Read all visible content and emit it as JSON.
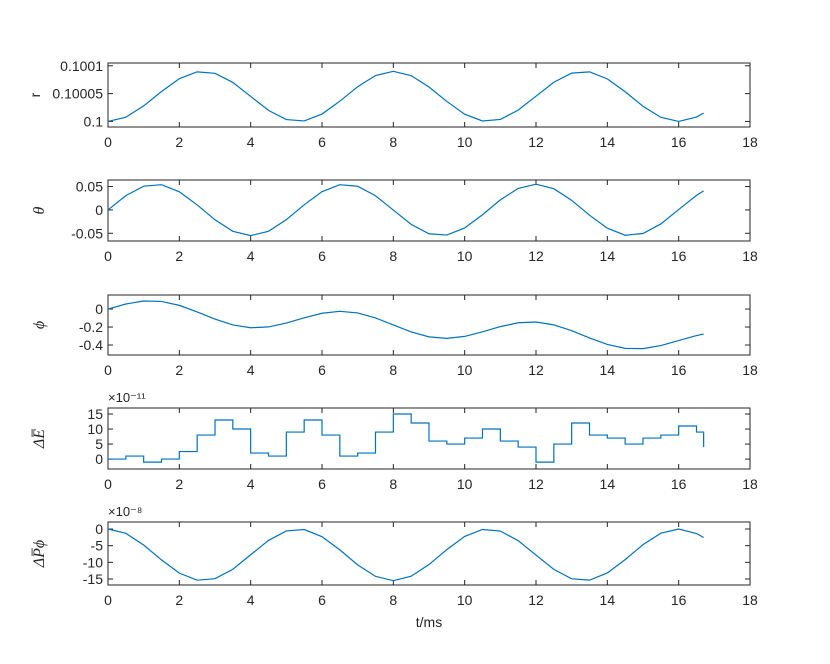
{
  "chart_data": [
    {
      "type": "line",
      "ylabel": "r",
      "color": "#0072BD",
      "x": [
        0,
        0.5,
        1,
        1.5,
        2,
        2.5,
        3,
        3.5,
        4,
        4.5,
        5,
        5.5,
        6,
        6.5,
        7,
        7.5,
        8,
        8.5,
        9,
        9.5,
        10,
        10.5,
        11,
        11.5,
        12,
        12.5,
        13,
        13.5,
        14,
        14.5,
        15,
        15.5,
        16,
        16.5,
        16.7
      ],
      "values": [
        0.1,
        0.1000076,
        0.1000279,
        0.1000538,
        0.1000769,
        0.1000891,
        0.1000865,
        0.1000701,
        0.1000449,
        0.1000199,
        0.1000034,
        0.1000009,
        0.1000133,
        0.1000364,
        0.1000624,
        0.1000825,
        0.10009,
        0.1000823,
        0.1000619,
        0.1000359,
        0.100013,
        0.1000008,
        0.1000036,
        0.1000203,
        0.1000454,
        0.1000704,
        0.1000868,
        0.1000891,
        0.1000765,
        0.1000533,
        0.1000273,
        0.1000073,
        0.1,
        0.1000079,
        0.1000149
      ],
      "xlim": [
        0,
        18
      ],
      "xticks": [
        0,
        2,
        4,
        6,
        8,
        10,
        12,
        14,
        16,
        18
      ],
      "ylim": [
        0.09999,
        0.100105
      ],
      "yticks": [
        0.1,
        0.10005,
        0.1001
      ]
    },
    {
      "type": "line",
      "ylabel": "θ",
      "color": "#0072BD",
      "x": [
        0,
        0.5,
        1,
        1.5,
        2,
        2.5,
        3,
        3.5,
        4,
        4.5,
        5,
        5.5,
        6,
        6.5,
        7,
        7.5,
        8,
        8.5,
        9,
        9.5,
        10,
        10.5,
        11,
        11.5,
        12,
        12.5,
        13,
        13.5,
        14,
        14.5,
        15,
        15.5,
        16,
        16.5,
        16.7
      ],
      "values": [
        0,
        0.0306,
        0.0508,
        0.054,
        0.0388,
        0.0107,
        -0.0211,
        -0.0457,
        -0.055,
        -0.0457,
        -0.0209,
        0.0109,
        0.0391,
        0.054,
        0.0507,
        0.0303,
        -0.0003,
        -0.0309,
        -0.051,
        -0.0538,
        -0.0386,
        -0.0103,
        0.0214,
        0.046,
        0.055,
        0.0454,
        0.0205,
        -0.0113,
        -0.0392,
        -0.0541,
        -0.0505,
        -0.03,
        0.0007,
        0.0311,
        0.0408
      ],
      "xlim": [
        0,
        18
      ],
      "xticks": [
        0,
        2,
        4,
        6,
        8,
        10,
        12,
        14,
        16,
        18
      ],
      "ylim": [
        -0.0665,
        0.064
      ],
      "yticks": [
        -0.05,
        0,
        0.05
      ]
    },
    {
      "type": "line",
      "ylabel": "ϕ",
      "color": "#0072BD",
      "x": [
        0,
        0.5,
        1,
        1.5,
        2,
        2.5,
        3,
        3.5,
        4,
        4.5,
        5,
        5.5,
        6,
        6.5,
        7,
        7.5,
        8,
        8.5,
        9,
        9.5,
        10,
        10.5,
        11,
        11.5,
        12,
        12.5,
        13,
        13.5,
        14,
        14.5,
        15,
        15.5,
        16,
        16.5,
        16.7
      ],
      "values": [
        0,
        0.0557,
        0.0889,
        0.0847,
        0.0406,
        -0.0317,
        -0.1121,
        -0.1766,
        -0.208,
        -0.1987,
        -0.1556,
        -0.0971,
        -0.0468,
        -0.0252,
        -0.0434,
        -0.0989,
        -0.1766,
        -0.2543,
        -0.3092,
        -0.3265,
        -0.3042,
        -0.2536,
        -0.1953,
        -0.1527,
        -0.144,
        -0.1759,
        -0.2412,
        -0.3216,
        -0.3936,
        -0.437,
        -0.4403,
        -0.4065,
        -0.3506,
        -0.2952,
        -0.2784
      ],
      "xlim": [
        0,
        18
      ],
      "xticks": [
        0,
        2,
        4,
        6,
        8,
        10,
        12,
        14,
        16,
        18
      ],
      "ylim": [
        -0.511,
        0.156
      ],
      "yticks": [
        -0.4,
        -0.2,
        0
      ]
    },
    {
      "type": "stairs",
      "ylabel": "ΔE̅",
      "y_multiplier": "×10⁻¹¹",
      "color": "#0072BD",
      "x": [
        0,
        0.5,
        1,
        1.5,
        2,
        2.5,
        3,
        3.5,
        4,
        4.5,
        5,
        5.5,
        6,
        6.5,
        7,
        7.5,
        8,
        8.5,
        9,
        9.5,
        10,
        10.5,
        11,
        11.5,
        12,
        12.5,
        13,
        13.5,
        14,
        14.5,
        15,
        15.5,
        16,
        16.5,
        16.7
      ],
      "values": [
        0,
        1,
        -1,
        0,
        2.5,
        8,
        13,
        10,
        2,
        1,
        9,
        13,
        8,
        1,
        2,
        9,
        15,
        12,
        6,
        5,
        7,
        10,
        6,
        4,
        -1,
        5,
        12,
        8,
        7,
        5,
        7,
        8,
        11,
        9,
        4
      ],
      "xlim": [
        0,
        18
      ],
      "xticks": [
        0,
        2,
        4,
        6,
        8,
        10,
        12,
        14,
        16,
        18
      ],
      "ylim": [
        -3.3,
        17
      ],
      "yticks": [
        0,
        5,
        10,
        15
      ]
    },
    {
      "type": "line",
      "ylabel": "ΔP̅ϕ",
      "y_multiplier": "×10⁻⁸",
      "xlabel": "t/ms",
      "color": "#0072BD",
      "x": [
        0,
        0.5,
        1,
        1.5,
        2,
        2.5,
        3,
        3.5,
        4,
        4.5,
        5,
        5.5,
        6,
        6.5,
        7,
        7.5,
        8,
        8.5,
        9,
        9.5,
        10,
        10.5,
        11,
        11.5,
        12,
        12.5,
        13,
        13.5,
        14,
        14.5,
        15,
        15.5,
        16,
        16.5,
        16.7
      ],
      "values": [
        0,
        -1.3,
        -4.8,
        -9.27,
        -13.24,
        -15.35,
        -14.9,
        -12.07,
        -7.73,
        -3.43,
        -0.58,
        -0.16,
        -2.29,
        -6.27,
        -10.75,
        -14.21,
        -15.5,
        -14.17,
        -10.66,
        -6.18,
        -2.23,
        -0.14,
        -0.61,
        -3.5,
        -7.82,
        -12.12,
        -14.94,
        -15.34,
        -13.18,
        -9.18,
        -4.7,
        -1.26,
        0,
        -1.36,
        -2.56
      ],
      "xlim": [
        0,
        18
      ],
      "xticks": [
        0,
        2,
        4,
        6,
        8,
        10,
        12,
        14,
        16,
        18
      ],
      "ylim": [
        -16.8,
        2.1
      ],
      "yticks": [
        -15,
        -10,
        -5,
        0
      ]
    }
  ]
}
